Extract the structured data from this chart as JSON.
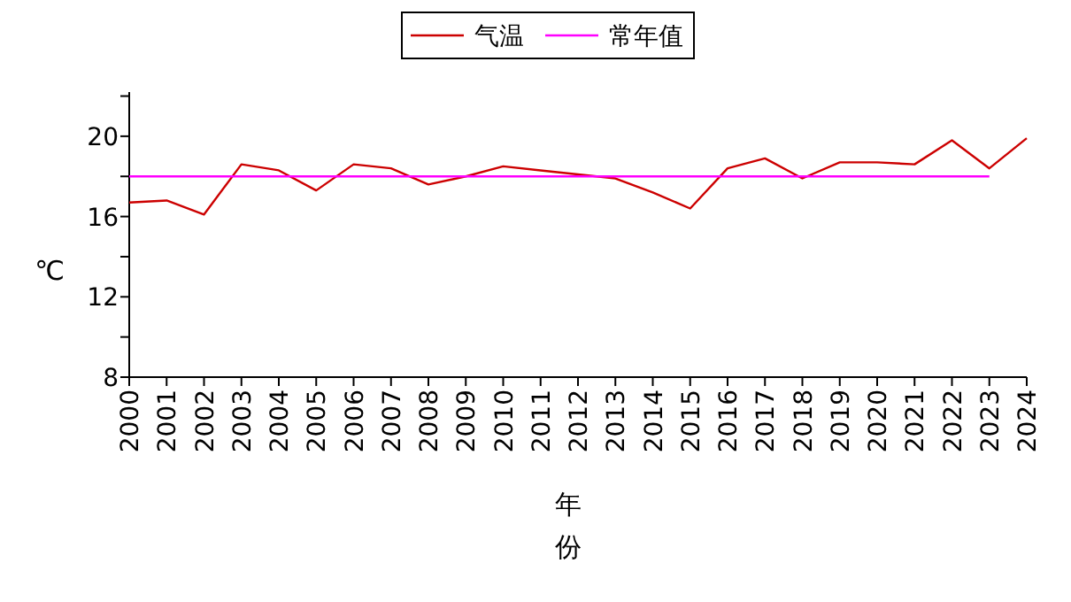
{
  "chart_data": {
    "type": "line",
    "xlabel": "年份",
    "ylabel": "℃",
    "categories": [
      "2000",
      "2001",
      "2002",
      "2003",
      "2004",
      "2005",
      "2006",
      "2007",
      "2008",
      "2009",
      "2010",
      "2011",
      "2012",
      "2013",
      "2014",
      "2015",
      "2016",
      "2017",
      "2018",
      "2019",
      "2020",
      "2021",
      "2022",
      "2023",
      "2024"
    ],
    "series": [
      {
        "name": "气温",
        "color": "#cc0000",
        "values": [
          16.7,
          16.8,
          16.1,
          18.6,
          18.3,
          17.3,
          18.6,
          18.4,
          17.6,
          18.0,
          18.5,
          18.3,
          18.1,
          17.9,
          17.2,
          16.4,
          18.4,
          18.9,
          17.9,
          18.7,
          18.7,
          18.6,
          19.8,
          18.4,
          19.9
        ]
      },
      {
        "name": "常年值",
        "color": "#ff00ff",
        "values": [
          18.0,
          18.0,
          18.0,
          18.0,
          18.0,
          18.0,
          18.0,
          18.0,
          18.0,
          18.0,
          18.0,
          18.0,
          18.0,
          18.0,
          18.0,
          18.0,
          18.0,
          18.0,
          18.0,
          18.0,
          18.0,
          18.0,
          18.0,
          18.0,
          null
        ]
      }
    ],
    "ylim": [
      8,
      22.2
    ],
    "yticks": [
      8,
      {
        "value": 10,
        "label": null
      },
      12,
      {
        "value": 14,
        "label": null
      },
      16,
      {
        "value": 18,
        "label": null
      },
      20,
      {
        "value": 22,
        "label": null
      }
    ],
    "grid": false,
    "legend": "top",
    "marker": "none",
    "line_style": "solid"
  }
}
